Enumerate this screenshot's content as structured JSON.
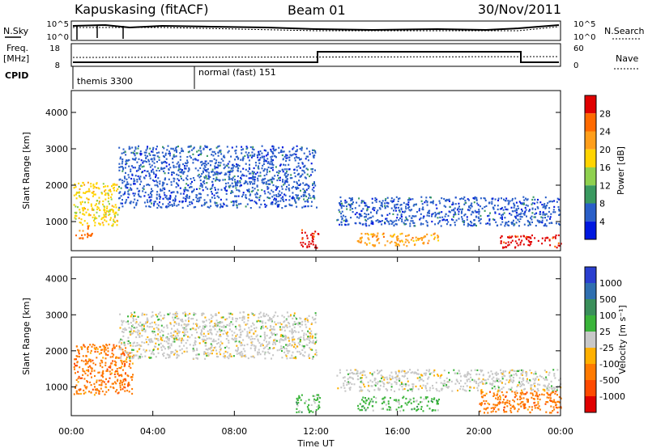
{
  "header": {
    "station": "Kapuskasing (fitACF)",
    "beam": "Beam 01",
    "date": "30/Nov/2011"
  },
  "summary_panels": {
    "nsky_label": "N.Sky",
    "nsky_ticks": [
      "10^5",
      "10^0"
    ],
    "nsearch_label": "N.Search",
    "nsearch_ticks": [
      "10^5",
      "10^0"
    ],
    "freq_label": "Freq.",
    "freq_unit": "[MHz]",
    "freq_ticks": [
      "18",
      "8"
    ],
    "nave_label": "Nave",
    "nave_ticks": [
      "60",
      "0"
    ],
    "cpid_label": "CPID",
    "cpid_modes": [
      {
        "name": "themis 3300",
        "start_hour": 0,
        "end_hour": 6
      },
      {
        "name": "normal (fast) 151",
        "start_hour": 6,
        "end_hour": 24
      }
    ]
  },
  "chart_data": [
    {
      "type": "heatmap",
      "title": "",
      "parameter": "Power",
      "colorbar_label": "Power [dB]",
      "colorbar_ticks": [
        "28",
        "24",
        "20",
        "16",
        "12",
        "8",
        "4"
      ],
      "colorbar_colors": [
        "#e00000",
        "#ff6a00",
        "#ff9e1a",
        "#ffd400",
        "#8fd14f",
        "#3a9a60",
        "#2a5fc8",
        "#0018e0"
      ],
      "xlabel": "",
      "ylabel": "Slant Range [km]",
      "xlim": [
        0,
        24
      ],
      "ylim": [
        200,
        4600
      ],
      "yticks": [
        "4000",
        "3000",
        "2000",
        "1000"
      ],
      "regions": [
        {
          "x0": 0.1,
          "x1": 2.3,
          "y0": 900,
          "y1": 2100,
          "level": "12-20"
        },
        {
          "x0": 0.2,
          "x1": 1.0,
          "y0": 550,
          "y1": 900,
          "level": "20-28"
        },
        {
          "x0": 2.3,
          "x1": 12.0,
          "y0": 1400,
          "y1": 3100,
          "level": "4-12"
        },
        {
          "x0": 11.2,
          "x1": 12.1,
          "y0": 300,
          "y1": 800,
          "level": "24-28"
        },
        {
          "x0": 13.0,
          "x1": 24.0,
          "y0": 900,
          "y1": 1700,
          "level": "4-8"
        },
        {
          "x0": 14.0,
          "x1": 18.0,
          "y0": 350,
          "y1": 700,
          "level": "16-24"
        },
        {
          "x0": 21.0,
          "x1": 24.0,
          "y0": 300,
          "y1": 650,
          "level": "24-28"
        }
      ]
    },
    {
      "type": "heatmap",
      "title": "",
      "parameter": "Velocity",
      "colorbar_label": "Velocity [m s⁻¹]",
      "colorbar_ticks": [
        "1000",
        "500",
        "100",
        "25",
        "-25",
        "-100",
        "-500",
        "-1000"
      ],
      "colorbar_colors": [
        "#2a3fd0",
        "#2f6fb0",
        "#3a8f5a",
        "#3ab43a",
        "#c8c8c8",
        "#ffb000",
        "#ff7a00",
        "#ff4a00",
        "#e00000"
      ],
      "xlabel": "Time UT",
      "ylabel": "Slant Range [km]",
      "xlim": [
        0,
        24
      ],
      "ylim": [
        200,
        4600
      ],
      "xticks": [
        "00:00",
        "04:00",
        "08:00",
        "12:00",
        "16:00",
        "20:00",
        "00:00"
      ],
      "yticks": [
        "4000",
        "3000",
        "2000",
        "1000"
      ],
      "regions": [
        {
          "x0": 0.1,
          "x1": 3.0,
          "y0": 800,
          "y1": 2200,
          "level": "-100 to -500"
        },
        {
          "x0": 2.3,
          "x1": 12.0,
          "y0": 1800,
          "y1": 3100,
          "level": "-25 to 25"
        },
        {
          "x0": 11.0,
          "x1": 12.2,
          "y0": 300,
          "y1": 800,
          "level": "25-100"
        },
        {
          "x0": 13.0,
          "x1": 24.0,
          "y0": 900,
          "y1": 1500,
          "level": "-25 to 25"
        },
        {
          "x0": 14.0,
          "x1": 18.0,
          "y0": 350,
          "y1": 750,
          "level": "25-100"
        },
        {
          "x0": 20.0,
          "x1": 24.0,
          "y0": 300,
          "y1": 900,
          "level": "-100 to -500"
        }
      ]
    }
  ]
}
